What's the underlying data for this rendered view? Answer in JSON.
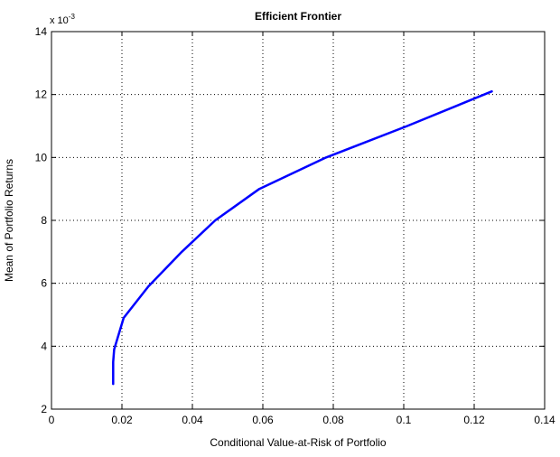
{
  "chart_data": {
    "type": "line",
    "title": "Efficient Frontier",
    "xlabel": "Conditional Value-at-Risk of Portfolio",
    "ylabel": "Mean of Portfolio Returns",
    "y_multiplier": {
      "base": "x 10",
      "exponent": "-3"
    },
    "xlim": [
      0,
      0.14
    ],
    "ylim": [
      2,
      14
    ],
    "xticks": [
      0,
      0.02,
      0.04,
      0.06,
      0.08,
      0.1,
      0.12,
      0.14
    ],
    "xtick_labels": [
      "0",
      "0.02",
      "0.04",
      "0.06",
      "0.08",
      "0.1",
      "0.12",
      "0.14"
    ],
    "yticks": [
      2,
      4,
      6,
      8,
      10,
      12,
      14
    ],
    "ytick_labels": [
      "2",
      "4",
      "6",
      "8",
      "10",
      "12",
      "14"
    ],
    "grid": true,
    "series": [
      {
        "color": "#0000ff",
        "x": [
          0.0175,
          0.0175,
          0.0178,
          0.0205,
          0.0275,
          0.037,
          0.0465,
          0.059,
          0.078,
          0.101,
          0.125
        ],
        "y": [
          2.8,
          3.5,
          3.9,
          4.9,
          5.9,
          7.0,
          8.0,
          9.0,
          10.0,
          11.0,
          12.1
        ]
      }
    ]
  }
}
